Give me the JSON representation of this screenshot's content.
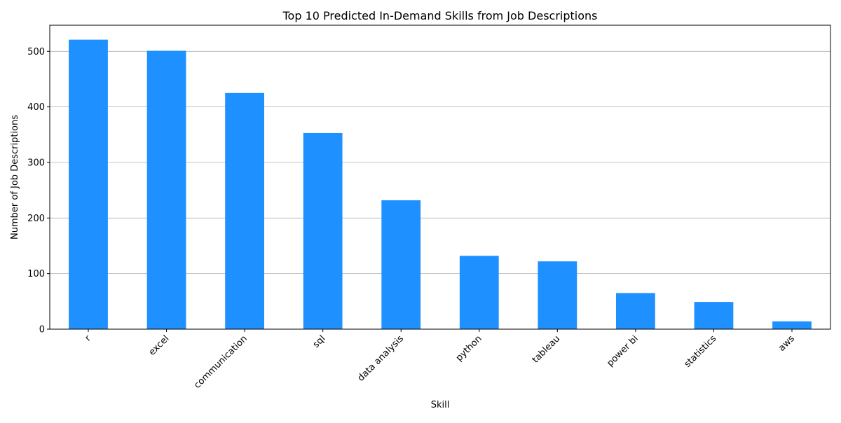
{
  "chart_data": {
    "type": "bar",
    "title": "Top 10 Predicted In-Demand Skills from Job Descriptions",
    "xlabel": "Skill",
    "ylabel": "Number of Job Descriptions",
    "categories": [
      "r",
      "excel",
      "communication",
      "sql",
      "data analysis",
      "python",
      "tableau",
      "power bi",
      "statistics",
      "aws"
    ],
    "values": [
      521,
      501,
      425,
      353,
      232,
      132,
      122,
      65,
      49,
      14
    ],
    "ylim": [
      0,
      547
    ],
    "yticks": [
      0,
      100,
      200,
      300,
      400,
      500
    ],
    "grid": "y",
    "bar_color": "#1e90ff"
  }
}
